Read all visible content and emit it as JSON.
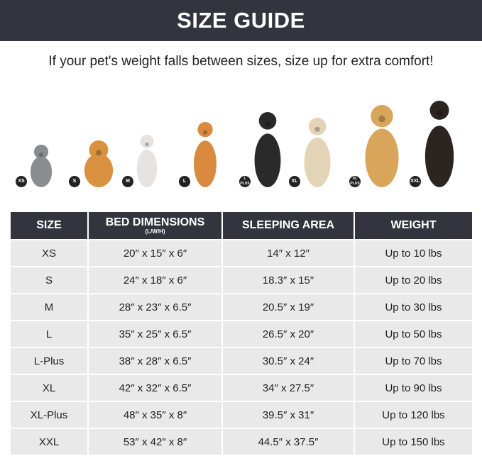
{
  "title": "SIZE GUIDE",
  "subtitle": "If your pet's weight falls between sizes, size up for extra comfort!",
  "pets": [
    {
      "badge": "XS",
      "animal": "gray cat",
      "color": "#8a8c90"
    },
    {
      "badge": "S",
      "animal": "pomeranian",
      "color": "#d9903f"
    },
    {
      "badge": "M",
      "animal": "french bulldog",
      "color": "#e6e3e0"
    },
    {
      "badge": "L",
      "animal": "shiba inu",
      "color": "#d98a3e"
    },
    {
      "badge": "L PLUS",
      "animal": "border collie",
      "color": "#2a2a2a"
    },
    {
      "badge": "XL",
      "animal": "labrador",
      "color": "#e3d4b8"
    },
    {
      "badge": "XL PLUS",
      "animal": "golden retriever",
      "color": "#d9a55a"
    },
    {
      "badge": "XXL",
      "animal": "doberman",
      "color": "#2b2420"
    }
  ],
  "table": {
    "headers": [
      "SIZE",
      "BED DIMENSIONS",
      "SLEEPING AREA",
      "WEIGHT"
    ],
    "header_note": "(L/W/H)",
    "rows": [
      [
        "XS",
        "20″ x 15″ x 6″",
        "14″ x 12″",
        "Up to 10 lbs"
      ],
      [
        "S",
        "24″ x 18″ x 6″",
        "18.3″ x 15″",
        "Up to 20 lbs"
      ],
      [
        "M",
        "28″ x 23″ x 6.5″",
        "20.5″ x 19″",
        "Up to 30 lbs"
      ],
      [
        "L",
        "35″ x 25″ x 6.5″",
        "26.5″ x 20″",
        "Up to 50 lbs"
      ],
      [
        "L-Plus",
        "38″ x 28″ x 6.5″",
        "30.5″ x 24″",
        "Up to 70 lbs"
      ],
      [
        "XL",
        "42″ x 32″ x 6.5″",
        "34″ x 27.5″",
        "Up to 90 lbs"
      ],
      [
        "XL-Plus",
        "48″ x 35″ x 8″",
        "39.5″ x 31″",
        "Up to 120 lbs"
      ],
      [
        "XXL",
        "53″ x 42″ x 8″",
        "44.5″ x 37.5″",
        "Up to 150 lbs"
      ]
    ]
  }
}
